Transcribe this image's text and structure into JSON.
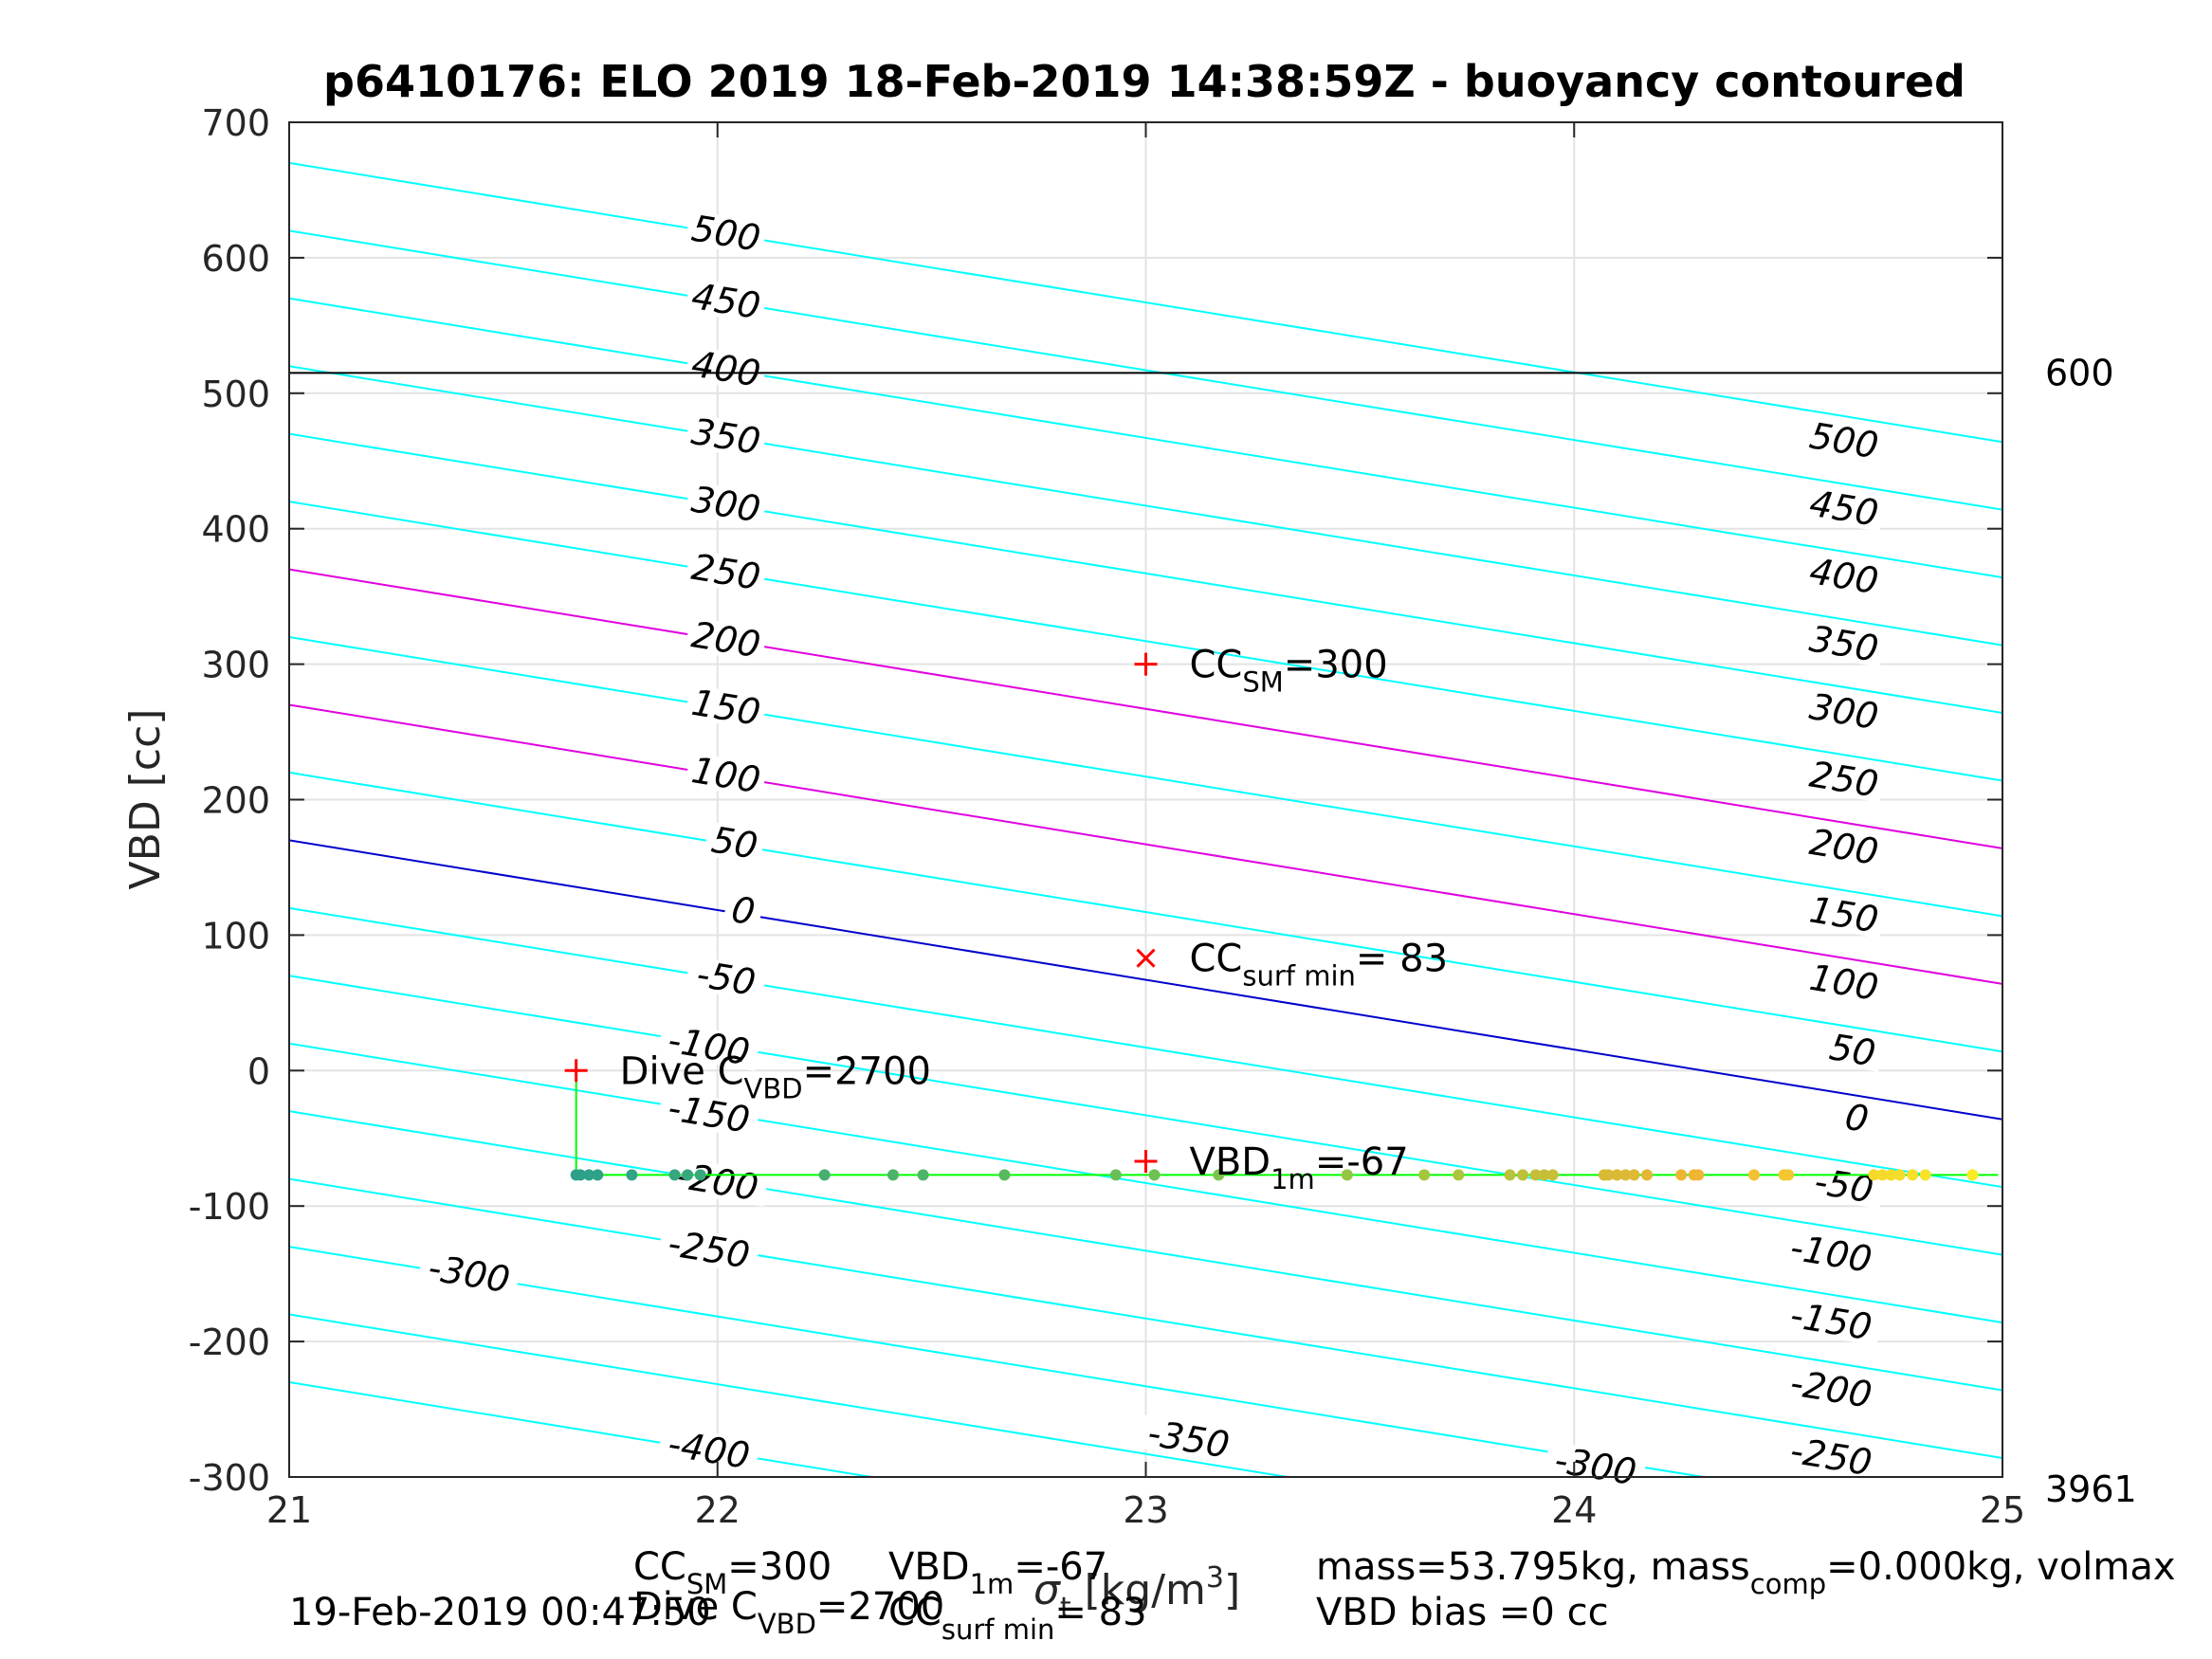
{
  "chart_data": {
    "type": "line",
    "title": "p6410176: ELO 2019 18-Feb-2019 14:38:59Z - buoyancy contoured",
    "xlabel": "σ_t [kg/m^3]",
    "ylabel": "VBD [cc]",
    "xlim": [
      21,
      25
    ],
    "ylim": [
      -300,
      700
    ],
    "x_ticks": [
      21,
      22,
      23,
      24,
      25
    ],
    "y_ticks": [
      -300,
      -200,
      -100,
      0,
      100,
      200,
      300,
      400,
      500,
      600,
      700
    ],
    "x_tick_labels": [
      "21",
      "22",
      "23",
      "24",
      "25"
    ],
    "y_tick_labels": [
      "-300",
      "-200",
      "-100",
      "0",
      "100",
      "200",
      "300",
      "400",
      "500",
      "600",
      "700"
    ],
    "grid": true,
    "contour_slope_cc_per_sigma": -51.5,
    "contours": {
      "levels": [
        -400,
        -350,
        -300,
        -250,
        -200,
        -150,
        -100,
        -50,
        0,
        50,
        100,
        150,
        200,
        250,
        300,
        350,
        400,
        450,
        500
      ],
      "zero_level_y_at_x21": 170,
      "colors": {
        "default": "#00ffff",
        "zero": "#0000cc",
        "highlight": "#e000e0"
      },
      "highlight_levels": [
        100,
        200
      ],
      "labels": [
        {
          "text": "500",
          "x": 22.02,
          "y": 618
        },
        {
          "text": "450",
          "x": 22.02,
          "y": 568
        },
        {
          "text": "400",
          "x": 22.02,
          "y": 518
        },
        {
          "text": "350",
          "x": 22.02,
          "y": 468
        },
        {
          "text": "300",
          "x": 22.02,
          "y": 418
        },
        {
          "text": "250",
          "x": 22.02,
          "y": 368
        },
        {
          "text": "200",
          "x": 22.02,
          "y": 318
        },
        {
          "text": "150",
          "x": 22.02,
          "y": 268
        },
        {
          "text": "100",
          "x": 22.02,
          "y": 218
        },
        {
          "text": "50",
          "x": 22.04,
          "y": 168
        },
        {
          "text": "0",
          "x": 22.06,
          "y": 118
        },
        {
          "text": "-50",
          "x": 22.02,
          "y": 68
        },
        {
          "text": "-100",
          "x": 21.98,
          "y": 18
        },
        {
          "text": "-150",
          "x": 21.98,
          "y": -32
        },
        {
          "text": "-200",
          "x": 22.0,
          "y": -82
        },
        {
          "text": "-250",
          "x": 21.98,
          "y": -132
        },
        {
          "text": "-300",
          "x": 21.42,
          "y": -150
        },
        {
          "text": "-350",
          "x": 23.1,
          "y": -272
        },
        {
          "text": "-400",
          "x": 21.98,
          "y": -280
        },
        {
          "text": "-300",
          "x": 24.05,
          "y": -292
        },
        {
          "text": "500",
          "x": 24.63,
          "y": 465
        },
        {
          "text": "450",
          "x": 24.63,
          "y": 415
        },
        {
          "text": "400",
          "x": 24.63,
          "y": 365
        },
        {
          "text": "350",
          "x": 24.63,
          "y": 315
        },
        {
          "text": "300",
          "x": 24.63,
          "y": 265
        },
        {
          "text": "250",
          "x": 24.63,
          "y": 215
        },
        {
          "text": "200",
          "x": 24.63,
          "y": 165
        },
        {
          "text": "150",
          "x": 24.63,
          "y": 115
        },
        {
          "text": "100",
          "x": 24.63,
          "y": 65
        },
        {
          "text": "50",
          "x": 24.65,
          "y": 15
        },
        {
          "text": "0",
          "x": 24.66,
          "y": -35
        },
        {
          "text": "-50",
          "x": 24.63,
          "y": -85
        },
        {
          "text": "-100",
          "x": 24.6,
          "y": -135
        },
        {
          "text": "-150",
          "x": 24.6,
          "y": -185
        },
        {
          "text": "-200",
          "x": 24.6,
          "y": -235
        },
        {
          "text": "-250",
          "x": 24.6,
          "y": -285
        }
      ]
    },
    "reference_lines": [
      {
        "y": 515,
        "color": "#000000",
        "right_label": "600"
      }
    ],
    "corner_label": "3961",
    "markers": [
      {
        "x": 23.0,
        "y": 300,
        "marker": "plus",
        "color": "#ff0000",
        "label": "CC",
        "sub": "SM",
        "suffix": "=300"
      },
      {
        "x": 23.0,
        "y": 83,
        "marker": "x",
        "color": "#ff0000",
        "label": "CC",
        "sub": "surf min",
        "suffix": "= 83"
      },
      {
        "x": 21.67,
        "y": 0,
        "marker": "plus",
        "color": "#ff0000",
        "label": "Dive C",
        "sub": "VBD",
        "suffix": "=2700"
      },
      {
        "x": 23.0,
        "y": -67,
        "marker": "plus",
        "color": "#ff0000",
        "label": "VBD",
        "sub": "1m",
        "suffix": "=-67"
      }
    ],
    "trajectory": {
      "color": "#00ff00",
      "x": [
        21.67,
        21.67,
        24.99
      ],
      "y": [
        0,
        -77,
        -77
      ]
    },
    "series": [
      {
        "y": -77,
        "x": [
          21.67,
          21.68,
          21.7,
          21.72,
          21.8,
          21.9,
          21.93,
          21.96,
          22.25,
          22.41,
          22.48,
          22.67,
          22.93,
          23.02,
          23.17,
          23.47,
          23.65,
          23.73,
          23.85,
          23.88,
          23.91,
          23.93,
          23.95,
          24.07,
          24.08,
          24.1,
          24.12,
          24.14,
          24.17,
          24.25,
          24.28,
          24.29,
          24.42,
          24.49,
          24.5,
          24.7,
          24.72,
          24.74,
          24.76,
          24.79,
          24.82,
          24.93
        ]
      }
    ]
  },
  "footer": {
    "line1": [
      {
        "main": "CC",
        "sub": "SM",
        "rest": "=300"
      },
      {
        "main": "VBD",
        "sub": "1m",
        "rest": "=-67"
      },
      {
        "main": "mass=53.795kg, mass",
        "sub": "comp",
        "rest": "=0.000kg, volmax"
      }
    ],
    "line2": [
      {
        "text": "19-Feb-2019 00:47:50"
      },
      {
        "main": "Dive C",
        "sub": "VBD",
        "rest": "=2700"
      },
      {
        "main": "CC",
        "sub": "surf min",
        "rest": "= 83"
      },
      {
        "text": "VBD bias =0 cc"
      }
    ]
  }
}
